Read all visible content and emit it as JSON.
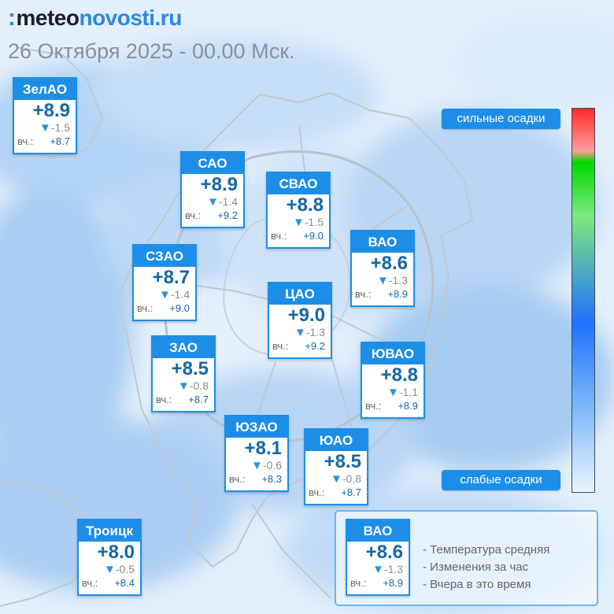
{
  "header": {
    "logo_part1": "meteo",
    "logo_part2": "novosti.ru",
    "subtitle": "26 Октября 2025 - 00.00 Мск."
  },
  "scale": {
    "top_label": "сильные осадки",
    "bottom_label": "слабые осадки",
    "colors": [
      "#ff2a2a",
      "#ff9c9c",
      "#00d800",
      "#2070ff",
      "#e9f4fe"
    ]
  },
  "yesterday_prefix": "вч.:",
  "districts": [
    {
      "name": "ЗелАО",
      "temp": "+8.9",
      "change": "-1.5",
      "yesterday": "+8.7"
    },
    {
      "name": "САО",
      "temp": "+8.9",
      "change": "-1.4",
      "yesterday": "+9.2"
    },
    {
      "name": "СВАО",
      "temp": "+8.8",
      "change": "-1.5",
      "yesterday": "+9.0"
    },
    {
      "name": "ВАО",
      "temp": "+8.6",
      "change": "-1.3",
      "yesterday": "+8.9"
    },
    {
      "name": "СЗАО",
      "temp": "+8.7",
      "change": "-1.4",
      "yesterday": "+9.0"
    },
    {
      "name": "ЦАО",
      "temp": "+9.0",
      "change": "-1.3",
      "yesterday": "+9.2"
    },
    {
      "name": "ЗАО",
      "temp": "+8.5",
      "change": "-0.8",
      "yesterday": "+8.7"
    },
    {
      "name": "ЮВАО",
      "temp": "+8.8",
      "change": "-1.1",
      "yesterday": "+8.9"
    },
    {
      "name": "ЮЗАО",
      "temp": "+8.1",
      "change": "-0.6",
      "yesterday": "+8.3"
    },
    {
      "name": "ЮАО",
      "temp": "+8.5",
      "change": "-0.8",
      "yesterday": "+8.7"
    },
    {
      "name": "Троицк",
      "temp": "+8.0",
      "change": "-0.5",
      "yesterday": "+8.4"
    }
  ],
  "legend": {
    "sample": {
      "name": "ВАО",
      "temp": "+8.6",
      "change": "-1.3",
      "yesterday": "+8.9"
    },
    "line_temp": "- Температура средняя",
    "line_change": "- Изменения за час",
    "line_yesterday": "- Вчера в это время"
  }
}
